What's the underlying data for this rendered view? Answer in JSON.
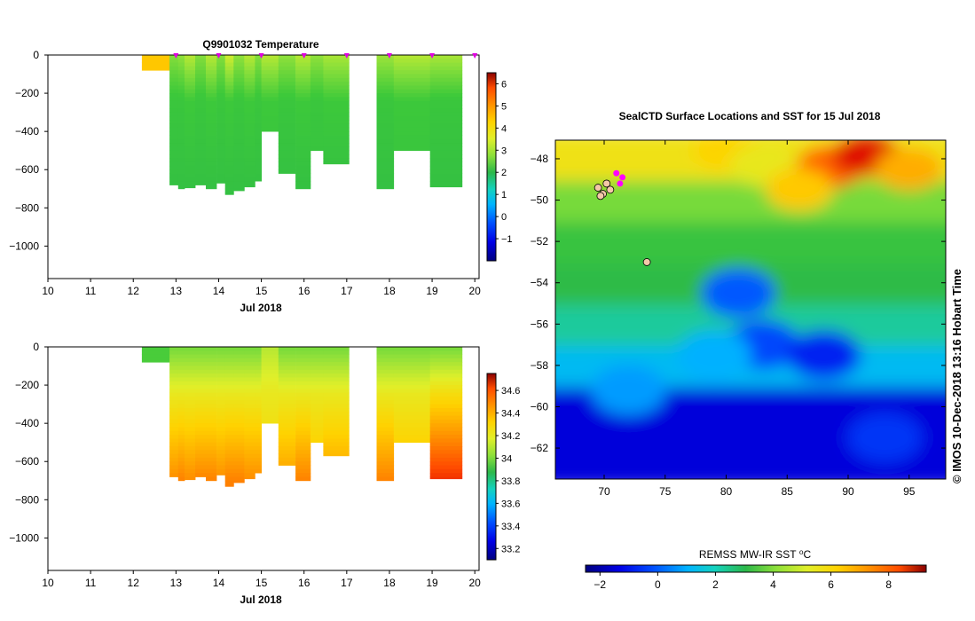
{
  "figure": {
    "title_top": "Q9901032  Temperature",
    "map_title": "SealCTD Surface Locations and SST for 15 Jul 2018",
    "credit": "© IMOS 10-Dec-2018 13:16 Hobart Time"
  },
  "colors": {
    "scale": [
      "#00007f",
      "#0000e6",
      "#0050ff",
      "#00b4ff",
      "#14d2be",
      "#2cb84a",
      "#3dc93a",
      "#8de03a",
      "#e0ef2a",
      "#ffd200",
      "#ff9200",
      "#ff4c00",
      "#d80000",
      "#8b0000"
    ]
  },
  "chart_data": [
    {
      "type": "heatmap",
      "name": "temperature-section",
      "title": "Q9901032  Temperature",
      "xlabel": "Jul 2018",
      "ylabel": "",
      "xlim": [
        10,
        20.1
      ],
      "ylim": [
        -1170,
        0
      ],
      "xticks": [
        10,
        11,
        12,
        13,
        14,
        15,
        16,
        17,
        18,
        19,
        20
      ],
      "yticks": [
        0,
        -200,
        -400,
        -600,
        -800,
        -1000
      ],
      "colorbar": {
        "min": -2,
        "max": 6.5,
        "ticks": [
          -1,
          0,
          1,
          2,
          3,
          4,
          5,
          6
        ]
      },
      "profile_markers_x": [
        13.0,
        14.0,
        15.0,
        16.0,
        17.0,
        18.0,
        19.0,
        20.0
      ],
      "profiles": [
        {
          "x0": 12.2,
          "x1": 12.85,
          "depth": -80,
          "surface": 4.0,
          "mid": 4.0,
          "deep": 4.0
        },
        {
          "x0": 12.85,
          "x1": 13.05,
          "depth": -680,
          "surface": 2.5,
          "mid": 1.8,
          "deep": 1.6
        },
        {
          "x0": 13.05,
          "x1": 13.2,
          "depth": -700,
          "surface": 2.6,
          "mid": 1.8,
          "deep": 1.6
        },
        {
          "x0": 13.2,
          "x1": 13.45,
          "depth": -695,
          "surface": 2.9,
          "mid": 1.9,
          "deep": 1.6
        },
        {
          "x0": 13.45,
          "x1": 13.7,
          "depth": -680,
          "surface": 2.5,
          "mid": 1.8,
          "deep": 1.6
        },
        {
          "x0": 13.7,
          "x1": 13.95,
          "depth": -700,
          "surface": 2.9,
          "mid": 1.9,
          "deep": 1.6
        },
        {
          "x0": 13.95,
          "x1": 14.15,
          "depth": -670,
          "surface": 2.5,
          "mid": 1.8,
          "deep": 1.6
        },
        {
          "x0": 14.15,
          "x1": 14.35,
          "depth": -730,
          "surface": 3.1,
          "mid": 1.9,
          "deep": 1.6
        },
        {
          "x0": 14.35,
          "x1": 14.6,
          "depth": -710,
          "surface": 2.6,
          "mid": 1.8,
          "deep": 1.6
        },
        {
          "x0": 14.6,
          "x1": 14.85,
          "depth": -690,
          "surface": 2.9,
          "mid": 1.9,
          "deep": 1.6
        },
        {
          "x0": 14.85,
          "x1": 15.0,
          "depth": -660,
          "surface": 2.5,
          "mid": 1.8,
          "deep": 1.6
        },
        {
          "x0": 15.0,
          "x1": 15.4,
          "depth": -400,
          "surface": 2.9,
          "mid": 1.9,
          "deep": 1.7
        },
        {
          "x0": 15.4,
          "x1": 15.8,
          "depth": -620,
          "surface": 2.6,
          "mid": 1.8,
          "deep": 1.6
        },
        {
          "x0": 15.8,
          "x1": 16.15,
          "depth": -700,
          "surface": 2.9,
          "mid": 1.9,
          "deep": 1.6
        },
        {
          "x0": 16.15,
          "x1": 16.45,
          "depth": -500,
          "surface": 2.6,
          "mid": 1.8,
          "deep": 1.7
        },
        {
          "x0": 16.45,
          "x1": 17.05,
          "depth": -570,
          "surface": 2.8,
          "mid": 1.9,
          "deep": 1.6
        },
        {
          "x0": 17.7,
          "x1": 18.1,
          "depth": -700,
          "surface": 2.7,
          "mid": 1.8,
          "deep": 1.6
        },
        {
          "x0": 18.1,
          "x1": 18.95,
          "depth": -500,
          "surface": 2.9,
          "mid": 1.9,
          "deep": 1.7
        },
        {
          "x0": 18.95,
          "x1": 19.7,
          "depth": -690,
          "surface": 2.8,
          "mid": 1.8,
          "deep": 1.6
        }
      ]
    },
    {
      "type": "heatmap",
      "name": "salinity-section",
      "title": "",
      "xlabel": "Jul 2018",
      "ylabel": "",
      "xlim": [
        10,
        20.1
      ],
      "ylim": [
        -1170,
        0
      ],
      "xticks": [
        10,
        11,
        12,
        13,
        14,
        15,
        16,
        17,
        18,
        19,
        20
      ],
      "yticks": [
        0,
        -200,
        -400,
        -600,
        -800,
        -1000
      ],
      "colorbar": {
        "min": 33.1,
        "max": 34.75,
        "ticks": [
          33.2,
          33.4,
          33.6,
          33.8,
          34,
          34.2,
          34.4,
          34.6
        ]
      },
      "profiles": [
        {
          "x0": 12.2,
          "x1": 12.85,
          "depth": -80,
          "surface": 33.88,
          "mid": 33.88,
          "deep": 33.88
        },
        {
          "x0": 12.85,
          "x1": 13.05,
          "depth": -680,
          "surface": 33.95,
          "mid": 34.15,
          "deep": 34.38
        },
        {
          "x0": 13.05,
          "x1": 13.2,
          "depth": -700,
          "surface": 33.95,
          "mid": 34.15,
          "deep": 34.4
        },
        {
          "x0": 13.2,
          "x1": 13.45,
          "depth": -695,
          "surface": 33.95,
          "mid": 34.15,
          "deep": 34.38
        },
        {
          "x0": 13.45,
          "x1": 13.7,
          "depth": -680,
          "surface": 33.95,
          "mid": 34.15,
          "deep": 34.4
        },
        {
          "x0": 13.7,
          "x1": 13.95,
          "depth": -700,
          "surface": 33.95,
          "mid": 34.15,
          "deep": 34.4
        },
        {
          "x0": 13.95,
          "x1": 14.15,
          "depth": -670,
          "surface": 33.95,
          "mid": 34.15,
          "deep": 34.38
        },
        {
          "x0": 14.15,
          "x1": 14.35,
          "depth": -730,
          "surface": 33.95,
          "mid": 34.15,
          "deep": 34.4
        },
        {
          "x0": 14.35,
          "x1": 14.6,
          "depth": -710,
          "surface": 33.95,
          "mid": 34.15,
          "deep": 34.4
        },
        {
          "x0": 14.6,
          "x1": 14.85,
          "depth": -690,
          "surface": 33.95,
          "mid": 34.15,
          "deep": 34.38
        },
        {
          "x0": 14.85,
          "x1": 15.0,
          "depth": -660,
          "surface": 33.95,
          "mid": 34.15,
          "deep": 34.38
        },
        {
          "x0": 15.0,
          "x1": 15.4,
          "depth": -400,
          "surface": 34.05,
          "mid": 34.15,
          "deep": 34.25
        },
        {
          "x0": 15.4,
          "x1": 15.8,
          "depth": -620,
          "surface": 33.95,
          "mid": 34.15,
          "deep": 34.35
        },
        {
          "x0": 15.8,
          "x1": 16.15,
          "depth": -700,
          "surface": 33.95,
          "mid": 34.15,
          "deep": 34.4
        },
        {
          "x0": 16.15,
          "x1": 16.45,
          "depth": -500,
          "surface": 33.95,
          "mid": 34.15,
          "deep": 34.3
        },
        {
          "x0": 16.45,
          "x1": 17.05,
          "depth": -570,
          "surface": 33.95,
          "mid": 34.15,
          "deep": 34.35
        },
        {
          "x0": 17.7,
          "x1": 18.1,
          "depth": -700,
          "surface": 33.95,
          "mid": 34.15,
          "deep": 34.4
        },
        {
          "x0": 18.1,
          "x1": 18.95,
          "depth": -500,
          "surface": 33.95,
          "mid": 34.15,
          "deep": 34.3
        },
        {
          "x0": 18.95,
          "x1": 19.7,
          "depth": -690,
          "surface": 33.95,
          "mid": 34.2,
          "deep": 34.55
        }
      ]
    },
    {
      "type": "heatmap",
      "name": "sst-map",
      "title": "SealCTD Surface Locations and SST for 15 Jul 2018",
      "xlabel": "",
      "ylabel": "",
      "xlim": [
        66,
        98
      ],
      "ylim": [
        -63.5,
        -47.1
      ],
      "xticks": [
        70,
        75,
        80,
        85,
        90,
        95
      ],
      "yticks": [
        -48,
        -50,
        -52,
        -54,
        -56,
        -58,
        -60,
        -62
      ],
      "colorbar": {
        "label": "REMSS MW-IR SST ⁰C",
        "min": -2.5,
        "max": 9.3,
        "ticks": [
          -2,
          0,
          2,
          4,
          6,
          8
        ]
      },
      "bands": [
        {
          "lat_top": -47.1,
          "lat_bottom": -49.5,
          "sst": 5.2
        },
        {
          "lat_top": -49.5,
          "lat_bottom": -51.5,
          "sst": 3.6
        },
        {
          "lat_top": -51.5,
          "lat_bottom": -53.5,
          "sst": 2.6
        },
        {
          "lat_top": -53.5,
          "lat_bottom": -55.5,
          "sst": 2.2
        },
        {
          "lat_top": -55.5,
          "lat_bottom": -57.5,
          "sst": 1.4
        },
        {
          "lat_top": -57.5,
          "lat_bottom": -59.5,
          "sst": 0.4
        },
        {
          "lat_top": -59.5,
          "lat_bottom": -63.5,
          "sst": -1.7
        }
      ],
      "warm_patches": [
        {
          "lon": 80,
          "lat": -47.6,
          "sst": 5.6
        },
        {
          "lon": 83,
          "lat": -48.3,
          "sst": 5.0
        },
        {
          "lon": 88.5,
          "lat": -48.4,
          "sst": 7.2
        },
        {
          "lon": 91.5,
          "lat": -47.8,
          "sst": 8.2
        },
        {
          "lon": 95,
          "lat": -48.5,
          "sst": 6.2
        },
        {
          "lon": 86,
          "lat": -49.5,
          "sst": 5.8
        }
      ],
      "cold_patches": [
        {
          "lon": 81,
          "lat": -54.5,
          "sst": -0.6
        },
        {
          "lon": 83,
          "lat": -57,
          "sst": -0.8
        },
        {
          "lon": 79,
          "lat": -57.5,
          "sst": 0.2
        },
        {
          "lon": 88,
          "lat": -57.5,
          "sst": -1.2
        },
        {
          "lon": 72,
          "lat": -59.2,
          "sst": 0.0
        },
        {
          "lon": 93,
          "lat": -61.5,
          "sst": -1.0
        }
      ],
      "seal_locations": [
        {
          "lon": 69.5,
          "lat": -49.4
        },
        {
          "lon": 69.9,
          "lat": -49.7
        },
        {
          "lon": 70.2,
          "lat": -49.2
        },
        {
          "lon": 69.7,
          "lat": -49.8
        },
        {
          "lon": 70.5,
          "lat": -49.5
        },
        {
          "lon": 73.5,
          "lat": -53.0
        }
      ],
      "seal_recent": [
        {
          "lon": 71.0,
          "lat": -48.7
        },
        {
          "lon": 71.3,
          "lat": -49.2
        },
        {
          "lon": 71.5,
          "lat": -48.9
        }
      ]
    }
  ]
}
